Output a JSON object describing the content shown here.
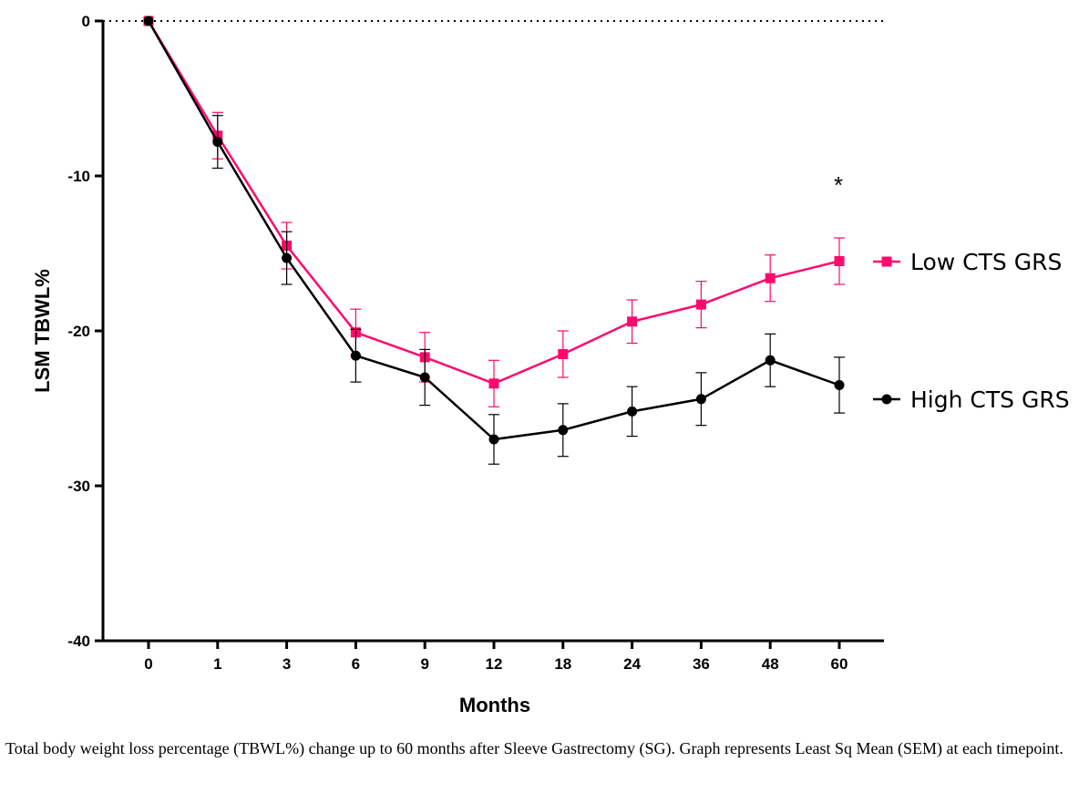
{
  "chart_data": {
    "type": "line",
    "xlabel": "Months",
    "ylabel": "LSM TBWL%",
    "categories": [
      "0",
      "1",
      "3",
      "6",
      "9",
      "12",
      "18",
      "24",
      "36",
      "48",
      "60"
    ],
    "ylim": [
      -40,
      0
    ],
    "yticks": [
      0,
      -10,
      -20,
      -30,
      -40
    ],
    "reference_line": {
      "y": 0,
      "style": "dotted"
    },
    "legend_position": "right",
    "annotations": [
      {
        "text": "*",
        "category": "60"
      }
    ],
    "series": [
      {
        "name": "Low CTS GRS",
        "color": "#ff0a6c",
        "marker": "square",
        "values": [
          0,
          -7.4,
          -14.5,
          -20.1,
          -21.7,
          -23.4,
          -21.5,
          -19.4,
          -18.3,
          -16.6,
          -15.5
        ],
        "errors": [
          0,
          1.5,
          1.5,
          1.5,
          1.6,
          1.5,
          1.5,
          1.4,
          1.5,
          1.5,
          1.5
        ]
      },
      {
        "name": "High CTS GRS",
        "color": "#000000",
        "marker": "circle",
        "values": [
          0,
          -7.8,
          -15.3,
          -21.6,
          -23.0,
          -27.0,
          -26.4,
          -25.2,
          -24.4,
          -21.9,
          -23.5
        ],
        "errors": [
          0,
          1.7,
          1.7,
          1.7,
          1.8,
          1.6,
          1.7,
          1.6,
          1.7,
          1.7,
          1.8
        ]
      }
    ]
  },
  "caption": "Total body weight loss percentage (TBWL%) change up to 60 months after Sleeve Gastrectomy (SG). Graph represents Least Sq Mean (SEM) at each timepoint."
}
